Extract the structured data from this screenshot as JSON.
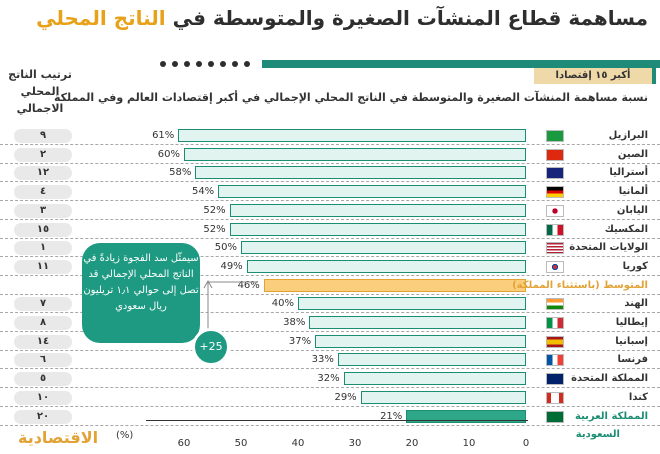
{
  "header": {
    "title_main": "مساهمة قطاع المنشآت الصغيرة والمتوسطة في",
    "title_highlight": "الناتج المحلي",
    "tag": "أكبر ١٥ إقتصادا",
    "subtitle": "نسبة مساهمة المنشآت الصغيرة والمتوسطة في الناتج المحلي الإجمالي في أكبر إقتصادات العالم وفي المملكة",
    "rank_header_line1": "ترتيب الناتج",
    "rank_header_line2": "المحلي الاجمالي"
  },
  "callout": {
    "text": "سيمثّل سد الفجوة زيادةً في الناتج المحلي الإجمالي قد تصل إلى حوالي ١٫١ تريليون ريال سعودي",
    "badge": "+25"
  },
  "logo_text": "الاقتصادية",
  "colors": {
    "bar_fill": "#e1f4ef",
    "bar_stroke": "#1c8d73",
    "avg": "#fbce7d",
    "saudi": "#2ea688",
    "accent": "#e8a21a"
  },
  "chart_data": {
    "type": "bar",
    "orientation": "horizontal",
    "unit": "(%)",
    "xlim": [
      0,
      65
    ],
    "xticks": [
      0,
      10,
      20,
      30,
      40,
      50,
      60
    ],
    "categories": [
      "البرازيل",
      "الصين",
      "أستراليا",
      "ألمانيا",
      "اليابان",
      "المكسيك",
      "الولايات المتحدة",
      "كوريا",
      "المتوسط (باستثناء المملكة)",
      "الهند",
      "إيطاليا",
      "إسبانيا",
      "فرنسا",
      "المملكة المتحدة",
      "كندا",
      "المملكة العربية"
    ],
    "values": [
      61,
      60,
      58,
      54,
      52,
      52,
      50,
      49,
      46,
      40,
      38,
      37,
      33,
      32,
      29,
      21
    ],
    "value_labels": [
      "61%",
      "60%",
      "58%",
      "54%",
      "52%",
      "52%",
      "50%",
      "49%",
      "46%",
      "40%",
      "38%",
      "37%",
      "33%",
      "32%",
      "29%",
      "21%"
    ],
    "ranks": [
      "٩",
      "٢",
      "١٢",
      "٤",
      "٣",
      "١٥",
      "١",
      "١١",
      "",
      "٧",
      "٨",
      "١٤",
      "٦",
      "٥",
      "١٠",
      "٢٠"
    ],
    "flags": [
      "flag-brazil",
      "flag-china",
      "flag-australia",
      "flag-germany",
      "flag-japan",
      "flag-mexico",
      "flag-usa",
      "flag-korea",
      "",
      "flag-india",
      "flag-italy",
      "flag-spain",
      "flag-france",
      "flag-uk",
      "flag-canada",
      "flag-saudi"
    ],
    "saudi_second_line": "السعودية"
  }
}
